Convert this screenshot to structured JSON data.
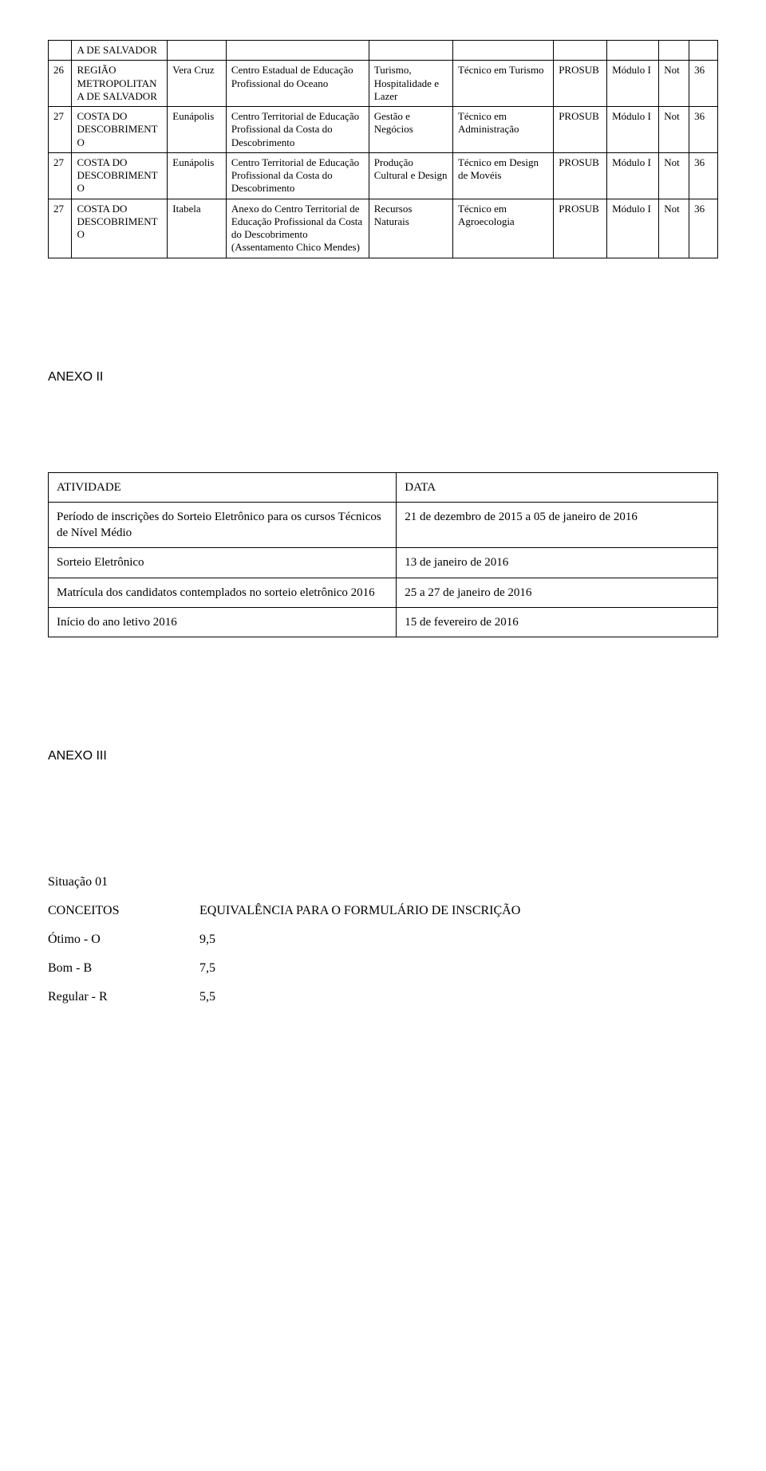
{
  "table1": {
    "rows": [
      {
        "num": "",
        "c1": "A DE SALVADOR",
        "c2": "",
        "c3": "",
        "c4": "",
        "c5": "",
        "c6": "",
        "c7": "",
        "c8": "",
        "c9": ""
      },
      {
        "num": "26",
        "c1": "REGIÃO METROPOLITAN A DE SALVADOR",
        "c2": "Vera Cruz",
        "c3": "Centro Estadual de Educação Profissional do Oceano",
        "c4": "Turismo, Hospitalidade e Lazer",
        "c5": "Técnico em Turismo",
        "c6": "PROSUB",
        "c7": "Módulo I",
        "c8": "Not",
        "c9": "36"
      },
      {
        "num": "27",
        "c1": "COSTA DO DESCOBRIMENT O",
        "c2": "Eunápolis",
        "c3": "Centro Territorial de Educação Profissional da Costa do Descobrimento",
        "c4": "Gestão e Negócios",
        "c5": "Técnico em Administração",
        "c6": "PROSUB",
        "c7": "Módulo I",
        "c8": "Not",
        "c9": "36"
      },
      {
        "num": "27",
        "c1": "COSTA DO DESCOBRIMENT O",
        "c2": "Eunápolis",
        "c3": "Centro Territorial de Educação Profissional da Costa do Descobrimento",
        "c4": "Produção Cultural e Design",
        "c5": "Técnico em Design de Movéis",
        "c6": "PROSUB",
        "c7": "Módulo I",
        "c8": "Not",
        "c9": "36"
      },
      {
        "num": "27",
        "c1": "COSTA DO DESCOBRIMENT O",
        "c2": "Itabela",
        "c3": "Anexo do Centro Territorial de Educação Profissional da Costa do Descobrimento (Assentamento Chico Mendes)",
        "c4": "Recursos Naturais",
        "c5": "Técnico em Agroecologia",
        "c6": "PROSUB",
        "c7": "Módulo I",
        "c8": "Not",
        "c9": "36"
      }
    ]
  },
  "anexo2_title": "ANEXO II",
  "schedule": {
    "header_left": "ATIVIDADE",
    "header_right": "DATA",
    "rows": [
      {
        "left": "Período de inscrições do Sorteio Eletrônico para os cursos Técnicos de Nível Médio",
        "right": "21 de dezembro de 2015 a 05 de janeiro de 2016"
      },
      {
        "left": "Sorteio Eletrônico",
        "right": "13 de janeiro de 2016"
      },
      {
        "left": "Matrícula dos candidatos contemplados no sorteio eletrônico 2016",
        "right": "25 a 27 de janeiro de 2016"
      },
      {
        "left": "Início do ano letivo 2016",
        "right": "15 de fevereiro de 2016"
      }
    ]
  },
  "anexo3_title": "ANEXO III",
  "situacao": "Situação 01",
  "conceitos_label": "CONCEITOS",
  "equivalencia_label": "EQUIVALÊNCIA PARA O FORMULÁRIO DE INSCRIÇÃO",
  "grades": [
    {
      "label": "Ótimo - O",
      "value": "9,5"
    },
    {
      "label": "Bom - B",
      "value": "7,5"
    },
    {
      "label": "Regular - R",
      "value": "5,5"
    }
  ]
}
